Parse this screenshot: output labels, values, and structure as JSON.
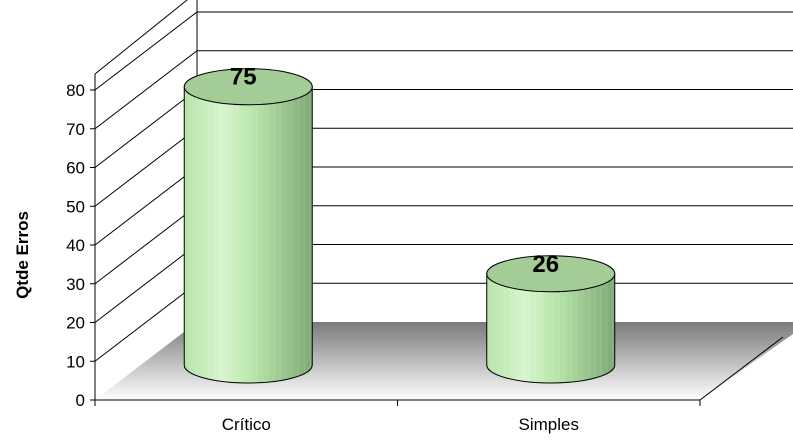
{
  "chart_data": {
    "type": "bar",
    "style": "3d-cylinder",
    "categories": [
      "Crítico",
      "Simples"
    ],
    "values": [
      75,
      26
    ],
    "data_labels": [
      "75",
      "26"
    ],
    "title": "",
    "xlabel": "",
    "ylabel": "Qtde Erros",
    "ylim": [
      0,
      80
    ],
    "yticks": [
      "0",
      "10",
      "20",
      "30",
      "40",
      "50",
      "60",
      "70",
      "80"
    ],
    "grid": true,
    "legend": "none",
    "colors": {
      "bar_light": "#d8f5cf",
      "bar_mid": "#b6e4a8",
      "bar_dark": "#7fa877",
      "cap": "#a3cc97",
      "floor_dark": "#7a7a7a",
      "floor_light": "#ffffff",
      "grid": "#000000"
    }
  }
}
